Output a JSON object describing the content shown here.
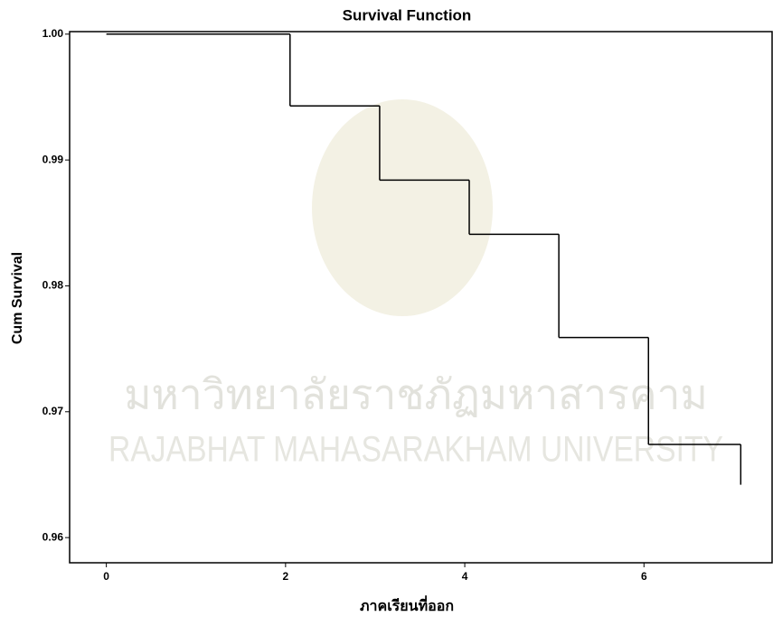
{
  "chart_data": {
    "type": "step",
    "title": "Survival Function",
    "x_label": "ภาคเรียนที่ออก",
    "y_label": "Cum Survival",
    "watermark": [
      "มหาวิทยาลัยราชภัฏมหาสารคาม",
      "RAJABHAT MAHASARAKHAM UNIVERSITY"
    ],
    "x": [
      0,
      2.05,
      3.05,
      4.05,
      5.05,
      6.05,
      7.08
    ],
    "values": [
      1.0,
      0.9943,
      0.9884,
      0.9841,
      0.9759,
      0.9674,
      0.9642
    ],
    "color": "#000000",
    "xlim": [
      -0.41,
      7.44
    ],
    "ylim": [
      0.958,
      1.0002
    ],
    "xticks": [
      0,
      2,
      4,
      6
    ],
    "yticks": [
      {
        "value": 0.96,
        "label": "0.96"
      },
      {
        "value": 0.97,
        "label": "0.97"
      },
      {
        "value": 0.98,
        "label": "0.98"
      },
      {
        "value": 0.99,
        "label": "0.99"
      },
      {
        "value": 1.0,
        "label": "1.00"
      }
    ]
  }
}
